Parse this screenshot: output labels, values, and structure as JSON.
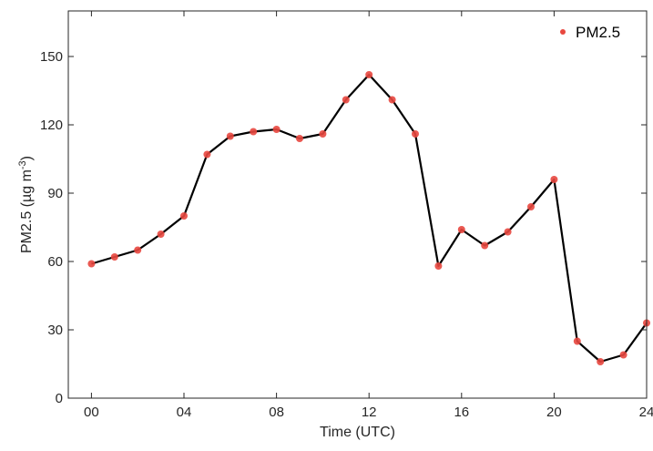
{
  "chart_data": {
    "type": "line",
    "xlabel": "Time (UTC)",
    "ylabel": {
      "prefix": "PM2.5 (µg m",
      "superscript": "-3",
      "suffix": ")"
    },
    "xlim": [
      -1,
      24
    ],
    "ylim": [
      0,
      170
    ],
    "xticks": [
      0,
      4,
      8,
      12,
      16,
      20,
      24
    ],
    "xtick_labels": [
      "00",
      "04",
      "08",
      "12",
      "16",
      "20",
      "24"
    ],
    "yticks": [
      0,
      30,
      60,
      90,
      120,
      150
    ],
    "ytick_labels": [
      "0",
      "30",
      "60",
      "90",
      "120",
      "150"
    ],
    "grid": false,
    "legend_position": "top-right",
    "series": [
      {
        "name": "PM2.5",
        "marker_color": "#e8473f",
        "line_color": "#000000",
        "x": [
          0,
          1,
          2,
          3,
          4,
          5,
          6,
          7,
          8,
          9,
          10,
          11,
          12,
          13,
          14,
          15,
          16,
          17,
          18,
          19,
          20,
          21,
          22,
          23,
          24
        ],
        "values": [
          59,
          62,
          65,
          72,
          80,
          107,
          115,
          117,
          118,
          114,
          116,
          131,
          142,
          131,
          116,
          58,
          74,
          67,
          73,
          84,
          96,
          25,
          16,
          19,
          33
        ]
      }
    ]
  }
}
